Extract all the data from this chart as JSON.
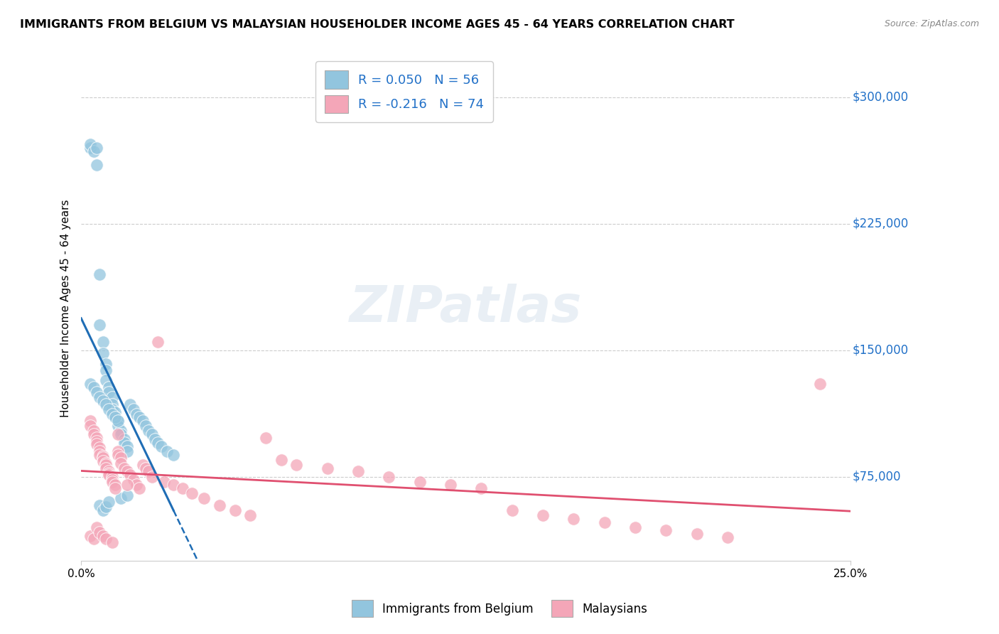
{
  "title": "IMMIGRANTS FROM BELGIUM VS MALAYSIAN HOUSEHOLDER INCOME AGES 45 - 64 YEARS CORRELATION CHART",
  "source": "Source: ZipAtlas.com",
  "ylabel": "Householder Income Ages 45 - 64 years",
  "ytick_labels": [
    "$75,000",
    "$150,000",
    "$225,000",
    "$300,000"
  ],
  "ytick_values": [
    75000,
    150000,
    225000,
    300000
  ],
  "xlim": [
    0.0,
    0.25
  ],
  "ylim": [
    25000,
    325000
  ],
  "legend_label1": "R = 0.050   N = 56",
  "legend_label2": "R = -0.216   N = 74",
  "watermark": "ZIPatlas",
  "blue_color": "#92c5de",
  "pink_color": "#f4a6b8",
  "blue_line_color": "#1f6db5",
  "pink_line_color": "#e05070",
  "blue_scatter_x": [
    0.003,
    0.003,
    0.004,
    0.005,
    0.005,
    0.006,
    0.006,
    0.007,
    0.007,
    0.008,
    0.008,
    0.008,
    0.009,
    0.009,
    0.01,
    0.01,
    0.01,
    0.011,
    0.011,
    0.012,
    0.012,
    0.013,
    0.013,
    0.014,
    0.014,
    0.015,
    0.015,
    0.016,
    0.017,
    0.018,
    0.019,
    0.02,
    0.021,
    0.022,
    0.023,
    0.024,
    0.025,
    0.026,
    0.028,
    0.03,
    0.003,
    0.004,
    0.005,
    0.006,
    0.007,
    0.008,
    0.009,
    0.01,
    0.011,
    0.012,
    0.006,
    0.007,
    0.008,
    0.009,
    0.013,
    0.015
  ],
  "blue_scatter_y": [
    270000,
    272000,
    268000,
    270000,
    260000,
    195000,
    165000,
    155000,
    148000,
    142000,
    138000,
    132000,
    128000,
    125000,
    122000,
    118000,
    115000,
    113000,
    110000,
    108000,
    105000,
    102000,
    100000,
    97000,
    95000,
    93000,
    90000,
    118000,
    115000,
    112000,
    110000,
    108000,
    105000,
    102000,
    100000,
    97000,
    95000,
    93000,
    90000,
    88000,
    130000,
    128000,
    125000,
    122000,
    120000,
    118000,
    115000,
    112000,
    110000,
    108000,
    58000,
    55000,
    57000,
    60000,
    62000,
    64000
  ],
  "pink_scatter_x": [
    0.003,
    0.003,
    0.004,
    0.004,
    0.005,
    0.005,
    0.005,
    0.006,
    0.006,
    0.006,
    0.007,
    0.007,
    0.007,
    0.008,
    0.008,
    0.008,
    0.009,
    0.009,
    0.009,
    0.01,
    0.01,
    0.01,
    0.011,
    0.011,
    0.012,
    0.012,
    0.013,
    0.013,
    0.014,
    0.015,
    0.016,
    0.017,
    0.018,
    0.019,
    0.02,
    0.021,
    0.022,
    0.023,
    0.025,
    0.027,
    0.03,
    0.033,
    0.036,
    0.04,
    0.045,
    0.05,
    0.055,
    0.06,
    0.065,
    0.07,
    0.08,
    0.09,
    0.1,
    0.11,
    0.12,
    0.13,
    0.14,
    0.15,
    0.16,
    0.17,
    0.18,
    0.19,
    0.2,
    0.21,
    0.003,
    0.004,
    0.005,
    0.006,
    0.007,
    0.008,
    0.01,
    0.012,
    0.015,
    0.24
  ],
  "pink_scatter_y": [
    108000,
    105000,
    102000,
    100000,
    98000,
    96000,
    94000,
    92000,
    90000,
    88000,
    87000,
    86000,
    84000,
    83000,
    82000,
    80000,
    78000,
    77000,
    76000,
    75000,
    73000,
    72000,
    70000,
    68000,
    90000,
    88000,
    86000,
    83000,
    80000,
    78000,
    76000,
    73000,
    70000,
    68000,
    82000,
    80000,
    78000,
    75000,
    155000,
    72000,
    70000,
    68000,
    65000,
    62000,
    58000,
    55000,
    52000,
    98000,
    85000,
    82000,
    80000,
    78000,
    75000,
    72000,
    70000,
    68000,
    55000,
    52000,
    50000,
    48000,
    45000,
    43000,
    41000,
    39000,
    40000,
    38000,
    45000,
    42000,
    40000,
    38000,
    36000,
    100000,
    70000,
    130000
  ]
}
